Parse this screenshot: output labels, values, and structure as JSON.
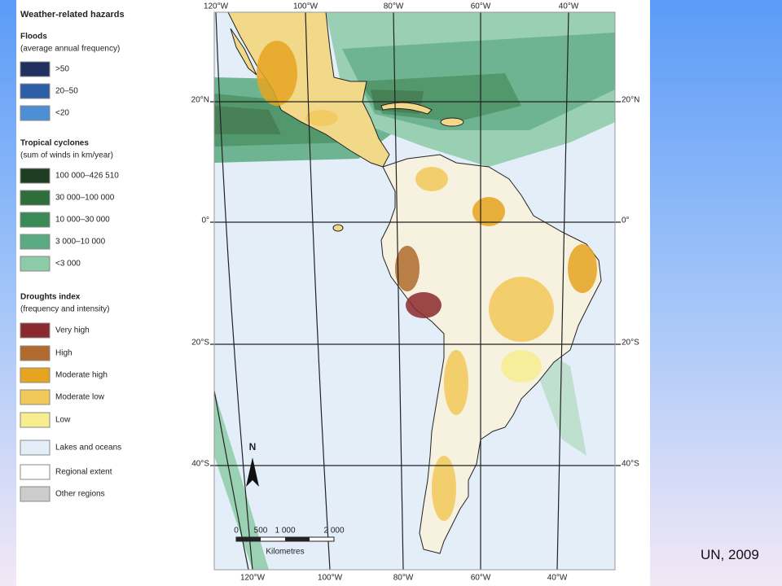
{
  "legend": {
    "title": "Weather-related hazards",
    "sections": [
      {
        "title": "Floods",
        "subtitle": "(average annual frequency)",
        "items": [
          {
            "label": ">50",
            "color": "#1f2f5e"
          },
          {
            "label": "20–50",
            "color": "#2d5fa8"
          },
          {
            "label": "<20",
            "color": "#4d8fd4"
          }
        ]
      },
      {
        "title": "Tropical cyclones",
        "subtitle": "(sum of winds in km/year)",
        "items": [
          {
            "label": "100 000–426 510",
            "color": "#1e3d22"
          },
          {
            "label": "30 000–100 000",
            "color": "#2e6e3a"
          },
          {
            "label": "10 000–30 000",
            "color": "#3a8a55"
          },
          {
            "label": "3 000–10 000",
            "color": "#5aaa82"
          },
          {
            "label": "<3 000",
            "color": "#8dcaa8"
          }
        ]
      },
      {
        "title": "Droughts index",
        "subtitle": "(frequency and intensity)",
        "items": [
          {
            "label": "Very high",
            "color": "#8b2a2e"
          },
          {
            "label": "High",
            "color": "#b06a2d"
          },
          {
            "label": "Moderate high",
            "color": "#e6a420"
          },
          {
            "label": "Moderate low",
            "color": "#f2c85a"
          },
          {
            "label": "Low",
            "color": "#f7ee8f"
          }
        ]
      },
      {
        "items": [
          {
            "label": "Lakes and oceans",
            "color": "#e3eef8"
          },
          {
            "label": "Regional extent",
            "color": "#ffffff"
          },
          {
            "label": "Other regions",
            "color": "#cccccc"
          }
        ]
      }
    ]
  },
  "map": {
    "longitudes": [
      "120°W",
      "100°W",
      "80°W",
      "60°W",
      "40°W"
    ],
    "latitudes": [
      "20°N",
      "0°",
      "20°S",
      "40°S"
    ],
    "north": "N",
    "scale": {
      "ticks": [
        "0",
        "500",
        "1 000",
        "2 000"
      ],
      "unit": "Kilometres"
    }
  },
  "source": "UN, 2009"
}
